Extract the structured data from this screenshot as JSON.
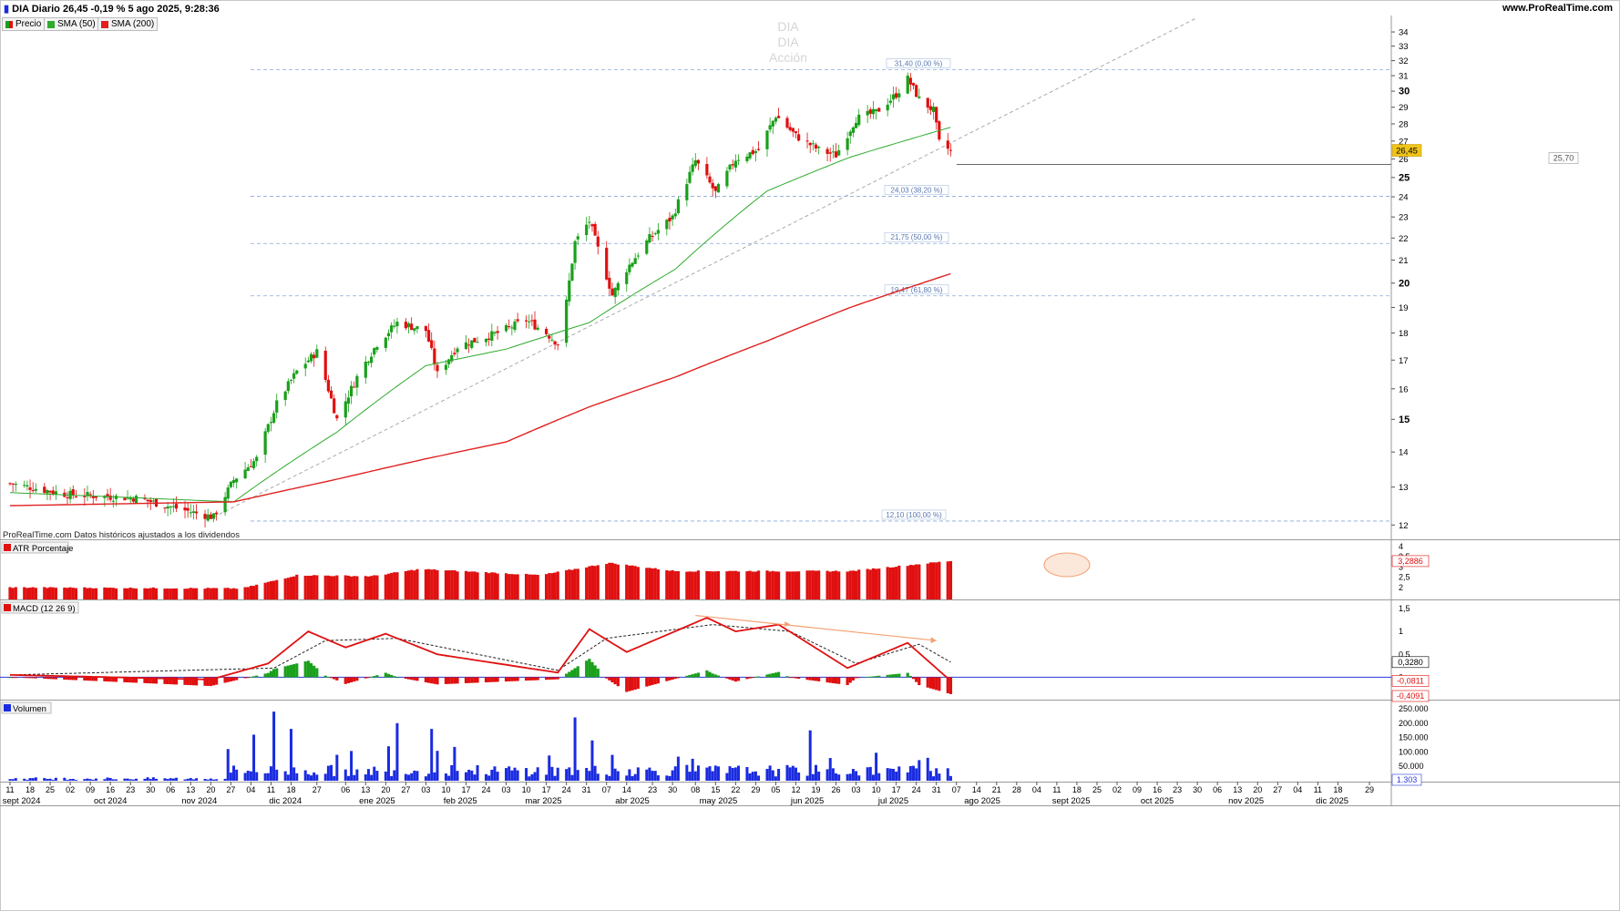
{
  "header": {
    "title": "DIA Diario 26,45 -0,19 % 5 ago 2025, 9:28:36",
    "site": "www.ProRealTime.com"
  },
  "legend": {
    "price": "Precio",
    "sma50": "SMA (50)",
    "sma200": "SMA (200)"
  },
  "watermark": [
    "DIA",
    "DIA",
    "Acción"
  ],
  "source_note": "ProRealTime.com Datos históricos ajustados a los dividendos",
  "colors": {
    "up": "#1aa01a",
    "down": "#e01010",
    "sma50": "#2eaa2e",
    "sma200": "#e02020",
    "volume": "#1a2be0",
    "macd_line": "#e01010",
    "signal": "#000000",
    "fib": "#8aa8d8",
    "trend": "#aaaaaa",
    "highlight": "#f4a070"
  },
  "chart_data": [
    {
      "type": "candlestick",
      "title": "DIA Diario",
      "y_scale": "log",
      "ylim": [
        11.8,
        35
      ],
      "y_ticks": [
        "12",
        "13",
        "14",
        "15",
        "16",
        "17",
        "18",
        "19",
        "20",
        "21",
        "22",
        "23",
        "24",
        "25",
        "26",
        "27",
        "28",
        "29",
        "30",
        "31",
        "32",
        "33",
        "34"
      ],
      "last_price": "26,45",
      "support_level": "25,70",
      "fibonacci_levels": [
        {
          "value": 31.4,
          "label": "31,40 (0,00 %)"
        },
        {
          "value": 24.03,
          "label": "24,03 (38,20 %)"
        },
        {
          "value": 21.75,
          "label": "21,75 (50,00 %)"
        },
        {
          "value": 19.47,
          "label": "19,47 (61,80 %)"
        },
        {
          "value": 12.1,
          "label": "12,10 (100,00 %)"
        }
      ],
      "price_path": [
        {
          "date": "2024-09-11",
          "close": 13.1
        },
        {
          "date": "2024-10-01",
          "close": 12.8
        },
        {
          "date": "2024-10-25",
          "close": 12.7
        },
        {
          "date": "2024-11-15",
          "close": 12.3
        },
        {
          "date": "2024-11-21",
          "close": 12.2
        },
        {
          "date": "2024-11-28",
          "close": 13.2
        },
        {
          "date": "2024-12-06",
          "close": 13.8
        },
        {
          "date": "2024-12-13",
          "close": 15.5
        },
        {
          "date": "2024-12-20",
          "close": 16.6
        },
        {
          "date": "2024-12-27",
          "close": 17.3
        },
        {
          "date": "2025-01-03",
          "close": 15.0
        },
        {
          "date": "2025-01-10",
          "close": 16.4
        },
        {
          "date": "2025-01-17",
          "close": 17.6
        },
        {
          "date": "2025-01-24",
          "close": 18.4
        },
        {
          "date": "2025-02-03",
          "close": 18.1
        },
        {
          "date": "2025-02-07",
          "close": 16.5
        },
        {
          "date": "2025-02-14",
          "close": 17.5
        },
        {
          "date": "2025-02-28",
          "close": 18.0
        },
        {
          "date": "2025-03-10",
          "close": 18.5
        },
        {
          "date": "2025-03-17",
          "close": 18.0
        },
        {
          "date": "2025-03-21",
          "close": 17.6
        },
        {
          "date": "2025-03-24",
          "close": 19.2
        },
        {
          "date": "2025-03-27",
          "close": 21.8
        },
        {
          "date": "2025-04-01",
          "close": 22.8
        },
        {
          "date": "2025-04-04",
          "close": 21.5
        },
        {
          "date": "2025-04-09",
          "close": 19.5
        },
        {
          "date": "2025-04-14",
          "close": 20.6
        },
        {
          "date": "2025-04-22",
          "close": 22.0
        },
        {
          "date": "2025-04-30",
          "close": 23.0
        },
        {
          "date": "2025-05-08",
          "close": 25.9
        },
        {
          "date": "2025-05-15",
          "close": 24.2
        },
        {
          "date": "2025-05-22",
          "close": 26.0
        },
        {
          "date": "2025-05-30",
          "close": 26.5
        },
        {
          "date": "2025-06-05",
          "close": 28.5
        },
        {
          "date": "2025-06-12",
          "close": 27.3
        },
        {
          "date": "2025-06-20",
          "close": 26.5
        },
        {
          "date": "2025-06-26",
          "close": 26.2
        },
        {
          "date": "2025-07-03",
          "close": 28.3
        },
        {
          "date": "2025-07-10",
          "close": 28.7
        },
        {
          "date": "2025-07-17",
          "close": 29.8
        },
        {
          "date": "2025-07-21",
          "close": 30.8
        },
        {
          "date": "2025-07-25",
          "close": 29.5
        },
        {
          "date": "2025-07-30",
          "close": 28.8
        },
        {
          "date": "2025-08-01",
          "close": 26.9
        },
        {
          "date": "2025-08-05",
          "close": 26.45
        }
      ],
      "sma50": [
        {
          "date": "2024-09-11",
          "value": 12.85
        },
        {
          "date": "2024-11-28",
          "value": 12.6
        },
        {
          "date": "2025-01-03",
          "value": 14.6
        },
        {
          "date": "2025-02-03",
          "value": 16.8
        },
        {
          "date": "2025-03-03",
          "value": 17.4
        },
        {
          "date": "2025-04-01",
          "value": 18.4
        },
        {
          "date": "2025-05-01",
          "value": 20.6
        },
        {
          "date": "2025-06-02",
          "value": 24.3
        },
        {
          "date": "2025-07-01",
          "value": 26.1
        },
        {
          "date": "2025-08-05",
          "value": 27.8
        }
      ],
      "sma200": [
        {
          "date": "2024-09-11",
          "value": 12.5
        },
        {
          "date": "2024-11-28",
          "value": 12.6
        },
        {
          "date": "2025-01-02",
          "value": 13.2
        },
        {
          "date": "2025-02-03",
          "value": 13.8
        },
        {
          "date": "2025-03-03",
          "value": 14.3
        },
        {
          "date": "2025-04-01",
          "value": 15.4
        },
        {
          "date": "2025-05-01",
          "value": 16.4
        },
        {
          "date": "2025-06-02",
          "value": 17.7
        },
        {
          "date": "2025-07-01",
          "value": 19.0
        },
        {
          "date": "2025-08-05",
          "value": 20.4
        }
      ],
      "trendline": [
        {
          "date": "2024-11-21",
          "value": 12.2
        },
        {
          "date": "2025-08-05",
          "value": 26.9
        }
      ]
    },
    {
      "type": "bar",
      "title": "ATR Porcentaje",
      "ylim": [
        1.5,
        4
      ],
      "y_ticks": [
        "4",
        "3,5",
        "3",
        "2,5",
        "2"
      ],
      "last_value": "3,2886",
      "path": [
        {
          "date": "2024-09-11",
          "value": 2.0
        },
        {
          "date": "2024-12-01",
          "value": 1.95
        },
        {
          "date": "2024-12-20",
          "value": 2.6
        },
        {
          "date": "2025-01-15",
          "value": 2.55
        },
        {
          "date": "2025-02-01",
          "value": 2.9
        },
        {
          "date": "2025-03-15",
          "value": 2.6
        },
        {
          "date": "2025-04-08",
          "value": 3.2
        },
        {
          "date": "2025-05-01",
          "value": 2.8
        },
        {
          "date": "2025-07-01",
          "value": 2.8
        },
        {
          "date": "2025-08-05",
          "value": 3.3
        }
      ]
    },
    {
      "type": "line",
      "title": "MACD (12 26 9)",
      "ylim": [
        -0.45,
        1.5
      ],
      "y_ticks": [
        "1,5",
        "1",
        "0,5",
        "0"
      ],
      "value_labels": [
        "0,3280",
        "-0,0811",
        "-0,4091"
      ],
      "macd": [
        {
          "date": "2024-09-11",
          "value": 0.05
        },
        {
          "date": "2024-11-20",
          "value": -0.05
        },
        {
          "date": "2024-12-10",
          "value": 0.3
        },
        {
          "date": "2024-12-24",
          "value": 1.0
        },
        {
          "date": "2025-01-06",
          "value": 0.65
        },
        {
          "date": "2025-01-20",
          "value": 0.95
        },
        {
          "date": "2025-02-07",
          "value": 0.5
        },
        {
          "date": "2025-03-21",
          "value": 0.1
        },
        {
          "date": "2025-04-01",
          "value": 1.05
        },
        {
          "date": "2025-04-14",
          "value": 0.55
        },
        {
          "date": "2025-05-12",
          "value": 1.3
        },
        {
          "date": "2025-05-22",
          "value": 1.0
        },
        {
          "date": "2025-06-06",
          "value": 1.15
        },
        {
          "date": "2025-06-30",
          "value": 0.2
        },
        {
          "date": "2025-07-21",
          "value": 0.75
        },
        {
          "date": "2025-08-05",
          "value": -0.08
        }
      ],
      "signal": [
        {
          "date": "2024-09-11",
          "value": 0.05
        },
        {
          "date": "2024-12-12",
          "value": 0.2
        },
        {
          "date": "2024-12-30",
          "value": 0.8
        },
        {
          "date": "2025-01-24",
          "value": 0.85
        },
        {
          "date": "2025-03-21",
          "value": 0.15
        },
        {
          "date": "2025-04-07",
          "value": 0.85
        },
        {
          "date": "2025-05-14",
          "value": 1.15
        },
        {
          "date": "2025-06-10",
          "value": 1.0
        },
        {
          "date": "2025-07-03",
          "value": 0.3
        },
        {
          "date": "2025-07-25",
          "value": 0.72
        },
        {
          "date": "2025-08-05",
          "value": 0.33
        }
      ],
      "divergence_line": [
        {
          "date": "2025-05-08",
          "value": 1.35
        },
        {
          "date": "2025-07-31",
          "value": 0.8
        }
      ]
    },
    {
      "type": "bar",
      "title": "Volumen",
      "ylim": [
        0,
        250000
      ],
      "y_ticks": [
        "250.000",
        "200.000",
        "150.000",
        "100.000",
        "50.000"
      ],
      "last_value": "1.303",
      "spikes": [
        {
          "date": "2024-11-26",
          "value": 110000
        },
        {
          "date": "2024-12-05",
          "value": 160000
        },
        {
          "date": "2024-12-12",
          "value": 240000
        },
        {
          "date": "2024-12-18",
          "value": 180000
        },
        {
          "date": "2025-01-03",
          "value": 90000
        },
        {
          "date": "2025-01-24",
          "value": 200000
        },
        {
          "date": "2025-02-05",
          "value": 180000
        },
        {
          "date": "2025-03-27",
          "value": 220000
        },
        {
          "date": "2025-04-02",
          "value": 140000
        },
        {
          "date": "2025-06-17",
          "value": 175000
        }
      ]
    }
  ],
  "x_axis": {
    "day_ticks": [
      {
        "date": "2024-09-11",
        "label": "11"
      },
      {
        "date": "2024-09-18",
        "label": "18"
      },
      {
        "date": "2024-09-25",
        "label": "25"
      },
      {
        "date": "2024-10-02",
        "label": "02"
      },
      {
        "date": "2024-10-09",
        "label": "09"
      },
      {
        "date": "2024-10-16",
        "label": "16"
      },
      {
        "date": "2024-10-23",
        "label": "23"
      },
      {
        "date": "2024-10-30",
        "label": "30"
      },
      {
        "date": "2024-11-06",
        "label": "06"
      },
      {
        "date": "2024-11-13",
        "label": "13"
      },
      {
        "date": "2024-11-20",
        "label": "20"
      },
      {
        "date": "2024-11-27",
        "label": "27"
      },
      {
        "date": "2024-12-04",
        "label": "04"
      },
      {
        "date": "2024-12-11",
        "label": "11"
      },
      {
        "date": "2024-12-18",
        "label": "18"
      },
      {
        "date": "2024-12-27",
        "label": "27"
      },
      {
        "date": "2025-01-06",
        "label": "06"
      },
      {
        "date": "2025-01-13",
        "label": "13"
      },
      {
        "date": "2025-01-20",
        "label": "20"
      },
      {
        "date": "2025-01-27",
        "label": "27"
      },
      {
        "date": "2025-02-03",
        "label": "03"
      },
      {
        "date": "2025-02-10",
        "label": "10"
      },
      {
        "date": "2025-02-17",
        "label": "17"
      },
      {
        "date": "2025-02-24",
        "label": "24"
      },
      {
        "date": "2025-03-03",
        "label": "03"
      },
      {
        "date": "2025-03-10",
        "label": "10"
      },
      {
        "date": "2025-03-17",
        "label": "17"
      },
      {
        "date": "2025-03-24",
        "label": "24"
      },
      {
        "date": "2025-03-31",
        "label": "31"
      },
      {
        "date": "2025-04-07",
        "label": "07"
      },
      {
        "date": "2025-04-14",
        "label": "14"
      },
      {
        "date": "2025-04-23",
        "label": "23"
      },
      {
        "date": "2025-04-30",
        "label": "30"
      },
      {
        "date": "2025-05-08",
        "label": "08"
      },
      {
        "date": "2025-05-15",
        "label": "15"
      },
      {
        "date": "2025-05-22",
        "label": "22"
      },
      {
        "date": "2025-05-29",
        "label": "29"
      },
      {
        "date": "2025-06-05",
        "label": "05"
      },
      {
        "date": "2025-06-12",
        "label": "12"
      },
      {
        "date": "2025-06-19",
        "label": "19"
      },
      {
        "date": "2025-06-26",
        "label": "26"
      },
      {
        "date": "2025-07-03",
        "label": "03"
      },
      {
        "date": "2025-07-10",
        "label": "10"
      },
      {
        "date": "2025-07-17",
        "label": "17"
      },
      {
        "date": "2025-07-24",
        "label": "24"
      },
      {
        "date": "2025-07-31",
        "label": "31"
      },
      {
        "date": "2025-08-07",
        "label": "07"
      },
      {
        "date": "2025-08-14",
        "label": "14"
      },
      {
        "date": "2025-08-21",
        "label": "21"
      },
      {
        "date": "2025-08-28",
        "label": "28"
      },
      {
        "date": "2025-09-04",
        "label": "04"
      },
      {
        "date": "2025-09-11",
        "label": "11"
      },
      {
        "date": "2025-09-18",
        "label": "18"
      },
      {
        "date": "2025-09-25",
        "label": "25"
      },
      {
        "date": "2025-10-02",
        "label": "02"
      },
      {
        "date": "2025-10-09",
        "label": "09"
      },
      {
        "date": "2025-10-16",
        "label": "16"
      },
      {
        "date": "2025-10-23",
        "label": "23"
      },
      {
        "date": "2025-10-30",
        "label": "30"
      },
      {
        "date": "2025-11-06",
        "label": "06"
      },
      {
        "date": "2025-11-13",
        "label": "13"
      },
      {
        "date": "2025-11-20",
        "label": "20"
      },
      {
        "date": "2025-11-27",
        "label": "27"
      },
      {
        "date": "2025-12-04",
        "label": "04"
      },
      {
        "date": "2025-12-11",
        "label": "11"
      },
      {
        "date": "2025-12-18",
        "label": "18"
      },
      {
        "date": "2025-12-29",
        "label": "29"
      }
    ],
    "month_ticks": [
      {
        "date": "2024-09-15",
        "label": "sept 2024"
      },
      {
        "date": "2024-10-16",
        "label": "oct 2024"
      },
      {
        "date": "2024-11-16",
        "label": "nov 2024"
      },
      {
        "date": "2024-12-16",
        "label": "dic 2024"
      },
      {
        "date": "2025-01-17",
        "label": "ene 2025"
      },
      {
        "date": "2025-02-15",
        "label": "feb 2025"
      },
      {
        "date": "2025-03-16",
        "label": "mar 2025"
      },
      {
        "date": "2025-04-16",
        "label": "abr 2025"
      },
      {
        "date": "2025-05-16",
        "label": "may 2025"
      },
      {
        "date": "2025-06-16",
        "label": "jun 2025"
      },
      {
        "date": "2025-07-16",
        "label": "jul 2025"
      },
      {
        "date": "2025-08-16",
        "label": "ago 2025"
      },
      {
        "date": "2025-09-16",
        "label": "sept 2025"
      },
      {
        "date": "2025-10-16",
        "label": "oct 2025"
      },
      {
        "date": "2025-11-16",
        "label": "nov 2025"
      },
      {
        "date": "2025-12-16",
        "label": "dic 2025"
      }
    ]
  }
}
